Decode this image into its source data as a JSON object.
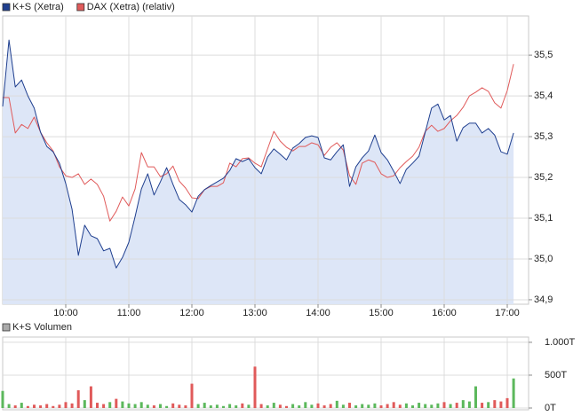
{
  "chart_data": [
    {
      "type": "line",
      "x": [
        9,
        9.1,
        9.2,
        9.3,
        9.4,
        9.5,
        9.6,
        9.7,
        9.8,
        9.9,
        10,
        10.1,
        10.2,
        10.3,
        10.4,
        10.5,
        10.6,
        10.7,
        10.8,
        10.9,
        11,
        11.1,
        11.2,
        11.3,
        11.4,
        11.5,
        11.6,
        11.7,
        11.8,
        11.9,
        12,
        12.1,
        12.2,
        12.3,
        12.4,
        12.5,
        12.6,
        12.7,
        12.8,
        12.9,
        13,
        13.1,
        13.2,
        13.3,
        13.4,
        13.5,
        13.6,
        13.7,
        13.8,
        13.9,
        14,
        14.1,
        14.2,
        14.3,
        14.4,
        14.5,
        14.6,
        14.7,
        14.8,
        14.9,
        15,
        15.1,
        15.2,
        15.3,
        15.4,
        15.5,
        15.6,
        15.7,
        15.8,
        15.9,
        16,
        16.1,
        16.2,
        16.3,
        16.4,
        16.5,
        16.6,
        16.7,
        16.8,
        16.9,
        17,
        17.1
      ],
      "series": [
        {
          "name": "K+S (Xetra)",
          "color": "#1f3f8f",
          "area_color": "#dde6f7",
          "values": [
            35.374,
            35.537,
            35.422,
            35.439,
            35.4,
            35.37,
            35.311,
            35.276,
            35.263,
            35.235,
            35.185,
            35.122,
            35.009,
            35.083,
            35.057,
            35.05,
            35.02,
            35.026,
            34.978,
            35.004,
            35.041,
            35.104,
            35.172,
            35.209,
            35.157,
            35.189,
            35.224,
            35.183,
            35.146,
            35.133,
            35.115,
            35.154,
            35.17,
            35.18,
            35.189,
            35.198,
            35.217,
            35.246,
            35.239,
            35.246,
            35.224,
            35.209,
            35.25,
            35.27,
            35.257,
            35.243,
            35.272,
            35.283,
            35.298,
            35.302,
            35.298,
            35.248,
            35.243,
            35.263,
            35.28,
            35.178,
            35.226,
            35.248,
            35.265,
            35.304,
            35.261,
            35.243,
            35.215,
            35.185,
            35.22,
            35.235,
            35.252,
            35.311,
            35.37,
            35.38,
            35.341,
            35.352,
            35.289,
            35.322,
            35.333,
            35.333,
            35.309,
            35.32,
            35.304,
            35.263,
            35.257,
            35.309
          ]
        },
        {
          "name": "DAX (Xetra) (relativ)",
          "color": "#e05a5a",
          "values": [
            35.396,
            35.396,
            35.309,
            35.33,
            35.32,
            35.348,
            35.311,
            35.285,
            35.265,
            35.226,
            35.204,
            35.2,
            35.209,
            35.183,
            35.196,
            35.183,
            35.154,
            35.093,
            35.117,
            35.152,
            35.13,
            35.172,
            35.261,
            35.226,
            35.226,
            35.202,
            35.209,
            35.228,
            35.191,
            35.174,
            35.15,
            35.148,
            35.17,
            35.178,
            35.178,
            35.187,
            35.235,
            35.226,
            35.246,
            35.248,
            35.235,
            35.226,
            35.27,
            35.313,
            35.289,
            35.274,
            35.265,
            35.276,
            35.276,
            35.285,
            35.28,
            35.254,
            35.274,
            35.285,
            35.267,
            35.204,
            35.183,
            35.235,
            35.243,
            35.237,
            35.209,
            35.2,
            35.204,
            35.224,
            35.239,
            35.252,
            35.274,
            35.313,
            35.328,
            35.313,
            35.32,
            35.339,
            35.352,
            35.372,
            35.4,
            35.409,
            35.42,
            35.411,
            35.383,
            35.37,
            35.413,
            35.478
          ]
        }
      ],
      "xlim": [
        9,
        17.338
      ],
      "xticks": [
        {
          "value": 10,
          "label": "10:00"
        },
        {
          "value": 11,
          "label": "11:00"
        },
        {
          "value": 12,
          "label": "12:00"
        },
        {
          "value": 13,
          "label": "13:00"
        },
        {
          "value": 14,
          "label": "14:00"
        },
        {
          "value": 15,
          "label": "15:00"
        },
        {
          "value": 16,
          "label": "16:00"
        },
        {
          "value": 17,
          "label": "17:00"
        }
      ],
      "ylim": [
        34.889,
        35.596
      ],
      "yticks": [
        {
          "value": 34.9,
          "label": "34,9"
        },
        {
          "value": 35,
          "label": "35,0"
        },
        {
          "value": 35.1,
          "label": "35,1"
        },
        {
          "value": 35.2,
          "label": "35,2"
        },
        {
          "value": 35.3,
          "label": "35,3"
        },
        {
          "value": 35.4,
          "label": "35,4"
        },
        {
          "value": 35.5,
          "label": "35,5"
        }
      ],
      "grid": true
    },
    {
      "type": "bar",
      "x": [
        9,
        9.1,
        9.2,
        9.3,
        9.4,
        9.5,
        9.6,
        9.7,
        9.8,
        9.9,
        10,
        10.1,
        10.2,
        10.3,
        10.4,
        10.5,
        10.6,
        10.7,
        10.8,
        10.9,
        11,
        11.1,
        11.2,
        11.3,
        11.4,
        11.5,
        11.6,
        11.7,
        11.8,
        11.9,
        12,
        12.1,
        12.2,
        12.3,
        12.4,
        12.5,
        12.6,
        12.7,
        12.8,
        12.9,
        13,
        13.1,
        13.2,
        13.3,
        13.4,
        13.5,
        13.6,
        13.7,
        13.8,
        13.9,
        14,
        14.1,
        14.2,
        14.3,
        14.4,
        14.5,
        14.6,
        14.7,
        14.8,
        14.9,
        15,
        15.1,
        15.2,
        15.3,
        15.4,
        15.5,
        15.6,
        15.7,
        15.8,
        15.9,
        16,
        16.1,
        16.2,
        16.3,
        16.4,
        16.5,
        16.6,
        16.7,
        16.8,
        16.9,
        17,
        17.1
      ],
      "series": [
        {
          "name": "K+S Volumen",
          "color": "#aaaaaa",
          "up_color": "#5cb85c",
          "down_color": "#e05a5a",
          "values": [
            260,
            60,
            40,
            80,
            30,
            50,
            40,
            60,
            30,
            50,
            90,
            70,
            270,
            120,
            330,
            80,
            60,
            90,
            140,
            100,
            70,
            60,
            90,
            50,
            40,
            60,
            30,
            70,
            50,
            40,
            370,
            60,
            80,
            40,
            50,
            30,
            60,
            40,
            70,
            50,
            630,
            60,
            40,
            80,
            50,
            30,
            60,
            40,
            90,
            50,
            70,
            40,
            60,
            110,
            50,
            80,
            40,
            60,
            50,
            70,
            40,
            60,
            90,
            50,
            70,
            40,
            80,
            60,
            50,
            70,
            90,
            60,
            80,
            120,
            100,
            330,
            80,
            90,
            120,
            100,
            150,
            450
          ]
        }
      ],
      "xlim": [
        9,
        17.338
      ],
      "ylim": [
        0,
        1080
      ],
      "yticks": [
        {
          "value": 0,
          "label": "0T"
        },
        {
          "value": 500,
          "label": "500T"
        },
        {
          "value": 1000,
          "label": "1.000T"
        }
      ],
      "grid": true
    }
  ]
}
